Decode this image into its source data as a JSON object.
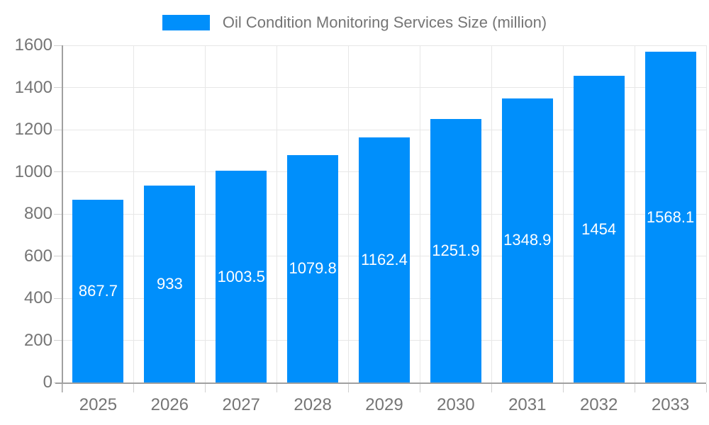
{
  "chart_data": {
    "type": "bar",
    "title": "Oil Condition Monitoring Services Size (million)",
    "categories": [
      "2025",
      "2026",
      "2027",
      "2028",
      "2029",
      "2030",
      "2031",
      "2032",
      "2033"
    ],
    "series": [
      {
        "name": "Oil Condition Monitoring Services Size (million)",
        "values": [
          867.7,
          933,
          1003.5,
          1079.8,
          1162.4,
          1251.9,
          1348.9,
          1454,
          1568.1
        ]
      }
    ],
    "data_labels": [
      "867.7",
      "933",
      "1003.5",
      "1079.8",
      "1162.4",
      "1251.9",
      "1348.9",
      "1454",
      "1568.1"
    ],
    "xlabel": "",
    "ylabel": "",
    "ylim": [
      0,
      1600
    ],
    "ytick_step": 200,
    "ytick_labels": [
      "0",
      "200",
      "400",
      "600",
      "800",
      "1000",
      "1200",
      "1400",
      "1600"
    ],
    "grid": true,
    "legend_position": "top",
    "colors": {
      "bar": "#008FFB",
      "axis_label": "#757575",
      "legend_label": "#757575",
      "gridline": "#e7e7e7",
      "axis_line": "#a0a0a0",
      "tick": "#d0d0d0",
      "data_label": "#ffffff",
      "background": "#ffffff"
    }
  }
}
